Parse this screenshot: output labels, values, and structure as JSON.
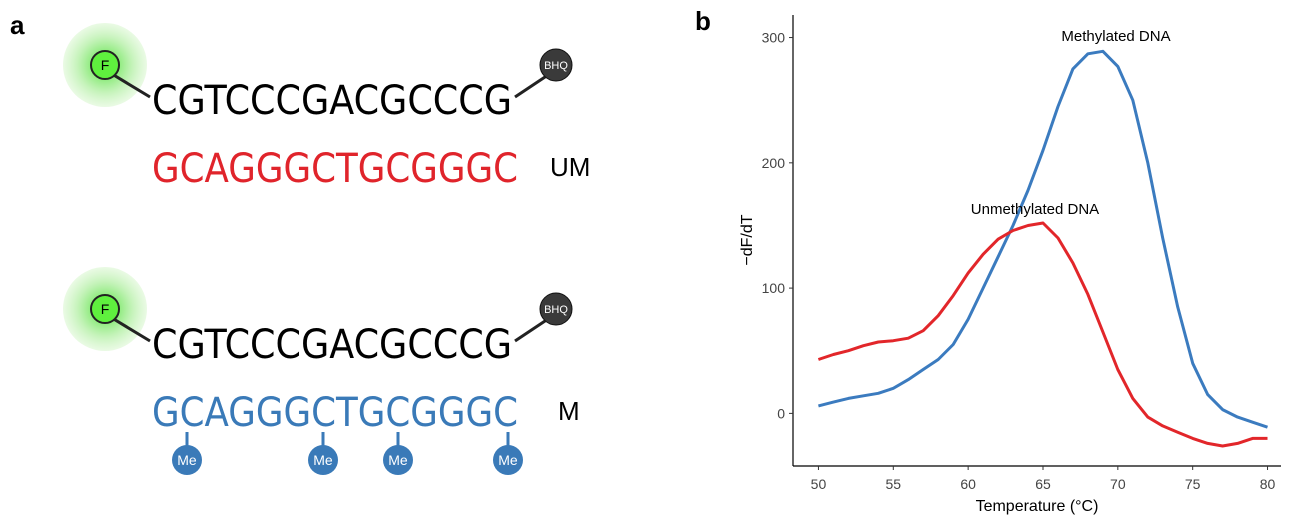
{
  "panel_a": {
    "label": "a",
    "probes": [
      {
        "fluor": "F",
        "quencher": "BHQ",
        "probe": "CGTCCCGACGCCCG",
        "target": "GCAGGGCTGCGGGC",
        "target_label": "UM",
        "target_color": "#e0242b"
      },
      {
        "fluor": "F",
        "quencher": "BHQ",
        "probe": "CGTCCCGACGCCCG",
        "target": "GCAGGGCTGCGGGC",
        "target_label": "M",
        "target_color": "#3a7ab8",
        "methyl_marks": [
          "Me",
          "Me",
          "Me",
          "Me"
        ]
      }
    ]
  },
  "chart_data": {
    "type": "line",
    "panel_label": "b",
    "x_label": "Temperature (°C)",
    "y_label": "−dF/dT",
    "x": [
      50,
      51,
      52,
      53,
      54,
      55,
      56,
      57,
      58,
      59,
      60,
      61,
      62,
      63,
      64,
      65,
      66,
      67,
      68,
      69,
      70,
      71,
      72,
      73,
      74,
      75,
      76,
      77,
      78,
      79,
      80
    ],
    "series": [
      {
        "color": "#3b7bbf",
        "values": [
          6,
          9,
          12,
          14,
          16,
          20,
          27,
          35,
          43,
          55,
          75,
          100,
          125,
          150,
          178,
          210,
          245,
          275,
          287,
          289,
          277,
          250,
          200,
          140,
          85,
          40,
          15,
          3,
          -3,
          -7,
          -11
        ]
      },
      {
        "color": "#e2262a",
        "values": [
          43,
          47,
          50,
          54,
          57,
          58,
          60,
          66,
          78,
          94,
          112,
          127,
          139,
          146,
          150,
          152,
          140,
          120,
          95,
          65,
          35,
          12,
          -3,
          -10,
          -15,
          -20,
          -24,
          -26,
          -24,
          -20,
          -20
        ]
      }
    ],
    "annotations": [
      {
        "text": "Methylated DNA"
      },
      {
        "text": "Unmethylated DNA"
      }
    ],
    "xlim": [
      48.3,
      80.9
    ],
    "ylim": [
      -42,
      318
    ],
    "xticks": [
      50,
      55,
      60,
      65,
      70,
      75,
      80
    ],
    "yticks": [
      0,
      100,
      200,
      300
    ]
  }
}
